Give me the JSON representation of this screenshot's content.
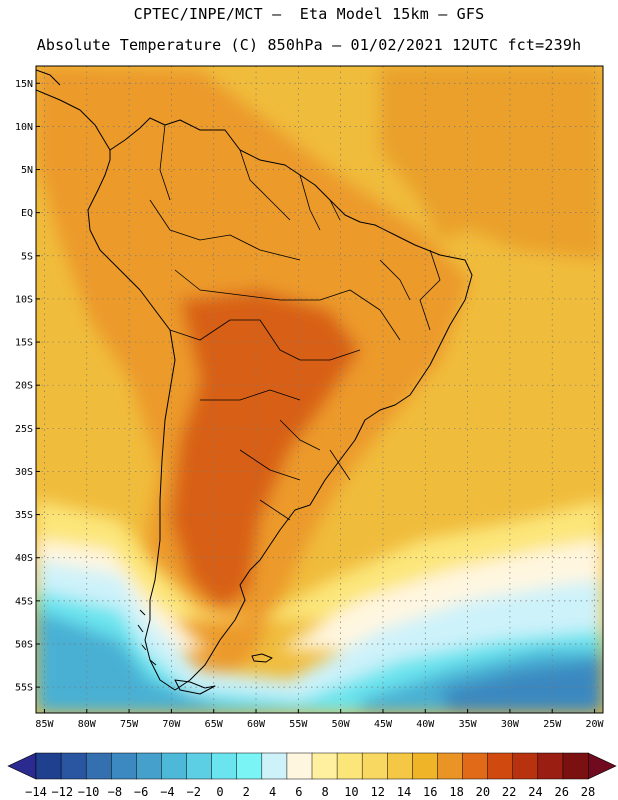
{
  "header": {
    "line1": "CPTEC/INPE/MCT –  Eta Model 15km – GFS",
    "line2": "Absolute Temperature (C) 850hPa – 01/02/2021 12UTC fct=239h"
  },
  "axes": {
    "lat_labels": [
      "15N",
      "10N",
      "5N",
      "EQ",
      "5S",
      "10S",
      "15S",
      "20S",
      "25S",
      "30S",
      "35S",
      "40S",
      "45S",
      "50S",
      "55S"
    ],
    "lat_values": [
      15,
      10,
      5,
      0,
      -5,
      -10,
      -15,
      -20,
      -25,
      -30,
      -35,
      -40,
      -45,
      -50,
      -55
    ],
    "lon_labels": [
      "85W",
      "80W",
      "75W",
      "70W",
      "65W",
      "60W",
      "55W",
      "50W",
      "45W",
      "40W",
      "35W",
      "30W",
      "25W",
      "20W"
    ],
    "lon_values": [
      -85,
      -80,
      -75,
      -70,
      -65,
      -60,
      -55,
      -50,
      -45,
      -40,
      -35,
      -30,
      -25,
      -20
    ],
    "lat_range": [
      -58,
      17
    ],
    "lon_range": [
      -86,
      -19
    ]
  },
  "colorbar": {
    "labels": [
      "-14",
      "-12",
      "-10",
      "-8",
      "-6",
      "-4",
      "-2",
      "0",
      "2",
      "4",
      "6",
      "8",
      "10",
      "12",
      "14",
      "16",
      "18",
      "20",
      "22",
      "24",
      "26",
      "28"
    ],
    "colors": [
      "#1f3f8f",
      "#2a55a0",
      "#3470b0",
      "#3c88c0",
      "#45a0cc",
      "#4eb8d8",
      "#5ccfe4",
      "#6ae4ee",
      "#7af4f4",
      "#cdf2fa",
      "#fff6e0",
      "#fff0a0",
      "#fce67a",
      "#f8d860",
      "#f4c844",
      "#f0b428",
      "#ea9426",
      "#e06a18",
      "#d04a10",
      "#b83210",
      "#9a1e12",
      "#7a1010"
    ],
    "under_color": "#2a2a90",
    "over_color": "#700a1e"
  },
  "map": {
    "ocean_color": "#f0bc3c",
    "equatorial_ocean_color": "#eaa02c",
    "land_color": "#ec9a2c",
    "hot_core_color": "#d86016",
    "cold_ocean_color": "#4ab0d4",
    "cold_deep_color": "#3a88c0",
    "cool_band_color": "#cdf2fa",
    "warm_band_color": "#fce67a",
    "light_band_color": "#fff6e0",
    "cyan_band_color": "#6ae4ee"
  }
}
